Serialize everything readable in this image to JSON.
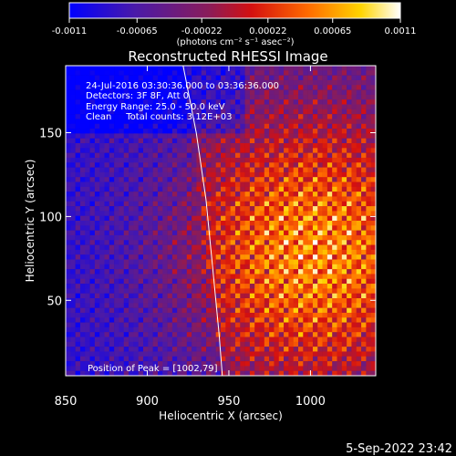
{
  "chart_data": {
    "type": "heatmap",
    "title": "Reconstructed RHESSI Image",
    "xlabel": "Heliocentric X (arcsec)",
    "ylabel": "Heliocentric Y (arcsec)",
    "xlim": [
      850,
      1040
    ],
    "ylim": [
      5,
      190
    ],
    "x_ticks": [
      850,
      900,
      950,
      1000
    ],
    "y_ticks": [
      50,
      100,
      150
    ],
    "colorbar": {
      "range": [
        -0.0011,
        0.0011
      ],
      "tick_labels": [
        "-0.0011",
        "-0.00065",
        "-0.00022",
        "0.00022",
        "0.00065",
        "0.0011"
      ],
      "unit_label": "(photons cm⁻² s⁻¹ asec⁻²)",
      "colormap": "blue-purple-red-yellow-white"
    },
    "annotations": [
      "24-Jul-2016 03:30:36.000 to 03:36:36.000",
      "Detectors: 3F 8F, Att 0",
      "Energy Range: 25.0 - 50.0 keV",
      "Clean     Total counts: 3.12E+03"
    ],
    "peak_label": "Position of Peak = [1002,79]",
    "peak": [
      1002,
      79
    ],
    "limb_curve": [
      [
        922,
        190
      ],
      [
        930,
        150
      ],
      [
        936,
        110
      ],
      [
        940,
        70
      ],
      [
        944,
        30
      ],
      [
        946,
        5
      ]
    ],
    "grid": false
  },
  "footer": {
    "timestamp": "5-Sep-2022 23:42"
  }
}
